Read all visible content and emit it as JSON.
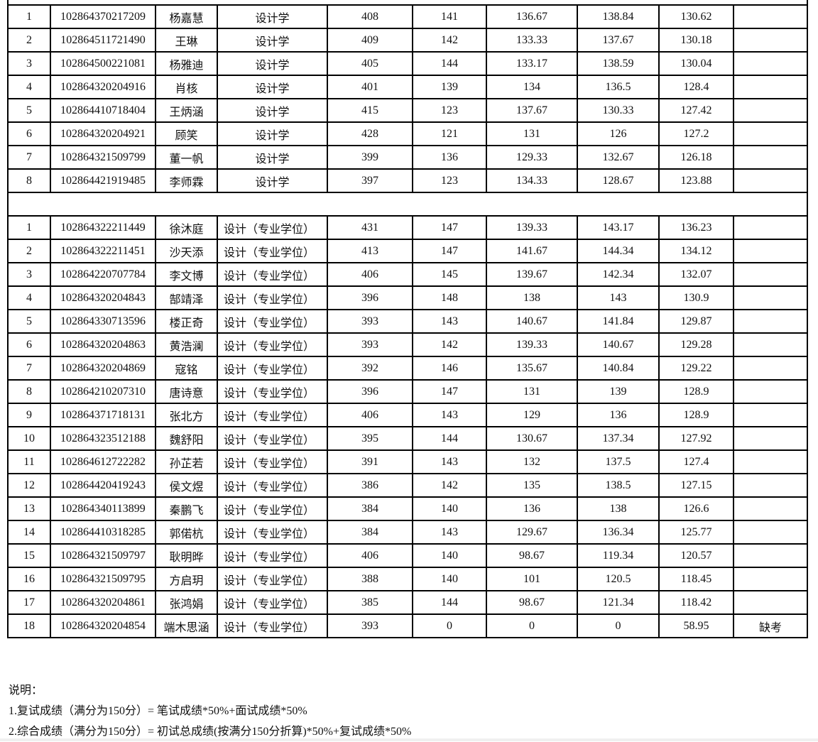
{
  "groups": [
    {
      "rows": [
        [
          "1",
          "102864370217209",
          "杨嘉慧",
          "设计学",
          "408",
          "141",
          "136.67",
          "138.84",
          "130.62",
          ""
        ],
        [
          "2",
          "102864511721490",
          "王琳",
          "设计学",
          "409",
          "142",
          "133.33",
          "137.67",
          "130.18",
          ""
        ],
        [
          "3",
          "102864500221081",
          "杨雅迪",
          "设计学",
          "405",
          "144",
          "133.17",
          "138.59",
          "130.04",
          ""
        ],
        [
          "4",
          "102864320204916",
          "肖核",
          "设计学",
          "401",
          "139",
          "134",
          "136.5",
          "128.4",
          ""
        ],
        [
          "5",
          "102864410718404",
          "王炳涵",
          "设计学",
          "415",
          "123",
          "137.67",
          "130.33",
          "127.42",
          ""
        ],
        [
          "6",
          "102864320204921",
          "顾笑",
          "设计学",
          "428",
          "121",
          "131",
          "126",
          "127.2",
          ""
        ],
        [
          "7",
          "102864321509799",
          "董一帆",
          "设计学",
          "399",
          "136",
          "129.33",
          "132.67",
          "126.18",
          ""
        ],
        [
          "8",
          "102864421919485",
          "李师霖",
          "设计学",
          "397",
          "123",
          "134.33",
          "128.67",
          "123.88",
          ""
        ]
      ]
    },
    {
      "rows": [
        [
          "1",
          "102864322211449",
          "徐沐庭",
          "设计（专业学位）",
          "431",
          "147",
          "139.33",
          "143.17",
          "136.23",
          ""
        ],
        [
          "2",
          "102864322211451",
          "沙天添",
          "设计（专业学位）",
          "413",
          "147",
          "141.67",
          "144.34",
          "134.12",
          ""
        ],
        [
          "3",
          "102864220707784",
          "李文博",
          "设计（专业学位）",
          "406",
          "145",
          "139.67",
          "142.34",
          "132.07",
          ""
        ],
        [
          "4",
          "102864320204843",
          "郜靖泽",
          "设计（专业学位）",
          "396",
          "148",
          "138",
          "143",
          "130.9",
          ""
        ],
        [
          "5",
          "102864330713596",
          "楼正奇",
          "设计（专业学位）",
          "393",
          "143",
          "140.67",
          "141.84",
          "129.87",
          ""
        ],
        [
          "6",
          "102864320204863",
          "黄浩澜",
          "设计（专业学位）",
          "393",
          "142",
          "139.33",
          "140.67",
          "129.28",
          ""
        ],
        [
          "7",
          "102864320204869",
          "寇铭",
          "设计（专业学位）",
          "392",
          "146",
          "135.67",
          "140.84",
          "129.22",
          ""
        ],
        [
          "8",
          "102864210207310",
          "唐诗意",
          "设计（专业学位）",
          "396",
          "147",
          "131",
          "139",
          "128.9",
          ""
        ],
        [
          "9",
          "102864371718131",
          "张北方",
          "设计（专业学位）",
          "406",
          "143",
          "129",
          "136",
          "128.9",
          ""
        ],
        [
          "10",
          "102864323512188",
          "魏舒阳",
          "设计（专业学位）",
          "395",
          "144",
          "130.67",
          "137.34",
          "127.92",
          ""
        ],
        [
          "11",
          "102864612722282",
          "孙芷若",
          "设计（专业学位）",
          "391",
          "143",
          "132",
          "137.5",
          "127.4",
          ""
        ],
        [
          "12",
          "102864420419243",
          "侯文煜",
          "设计（专业学位）",
          "386",
          "142",
          "135",
          "138.5",
          "127.15",
          ""
        ],
        [
          "13",
          "102864340113899",
          "秦鹏飞",
          "设计（专业学位）",
          "384",
          "140",
          "136",
          "138",
          "126.6",
          ""
        ],
        [
          "14",
          "102864410318285",
          "郭偌杭",
          "设计（专业学位）",
          "384",
          "143",
          "129.67",
          "136.34",
          "125.77",
          ""
        ],
        [
          "15",
          "102864321509797",
          "耿明晔",
          "设计（专业学位）",
          "406",
          "140",
          "98.67",
          "119.34",
          "120.57",
          ""
        ],
        [
          "16",
          "102864321509795",
          "方启玥",
          "设计（专业学位）",
          "388",
          "140",
          "101",
          "120.5",
          "118.45",
          ""
        ],
        [
          "17",
          "102864320204861",
          "张鸿娟",
          "设计（专业学位）",
          "385",
          "144",
          "98.67",
          "121.34",
          "118.42",
          ""
        ],
        [
          "18",
          "102864320204854",
          "端木思涵",
          "设计（专业学位）",
          "393",
          "0",
          "0",
          "0",
          "58.95",
          "缺考"
        ]
      ]
    }
  ],
  "notes": {
    "title": "说明：",
    "line1": "1.复试成绩（满分为150分）= 笔试成绩*50%+面试成绩*50%",
    "line2": "2.综合成绩（满分为150分）= 初试总成绩(按满分150分折算)*50%+复试成绩*50%"
  }
}
